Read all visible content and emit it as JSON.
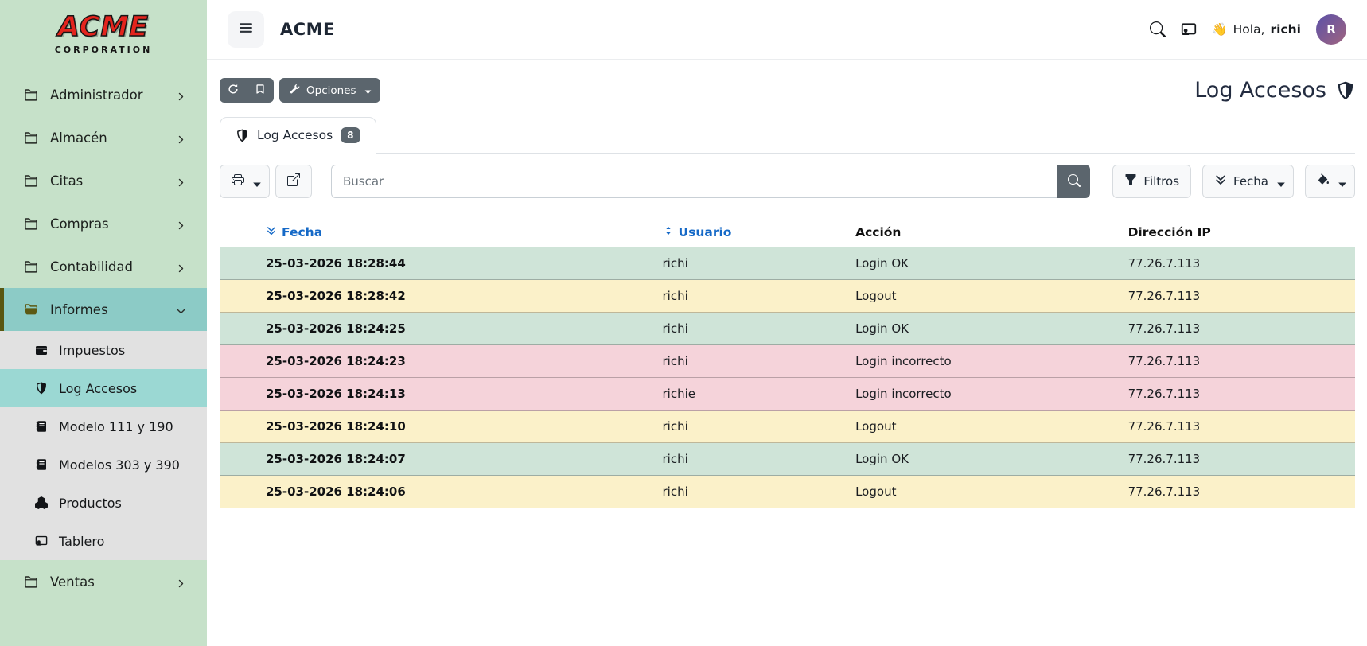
{
  "colors": {
    "sidebar_green": "#c6e1c9",
    "active_teal": "#8ccbc6",
    "submenu_active": "#9bd8d3",
    "accent_dark": "#5b656d",
    "link_blue": "#1569c7",
    "logo_red": "#e3241d",
    "row_ok": "#cfe4d8",
    "row_logout": "#fbf1c9",
    "row_bad": "#f5d3da"
  },
  "branding": {
    "logo_line1": "ACME",
    "logo_line2": "CORPORATION"
  },
  "topbar": {
    "title": "ACME",
    "wave_emoji": "👋",
    "greeting_prefix": "Hola,",
    "username": "richi",
    "avatar_initial": "R"
  },
  "sidebar": {
    "items": [
      {
        "label": "Administrador",
        "icon": "folder",
        "expandable": true
      },
      {
        "label": "Almacén",
        "icon": "folder",
        "expandable": true
      },
      {
        "label": "Citas",
        "icon": "folder",
        "expandable": true
      },
      {
        "label": "Compras",
        "icon": "folder",
        "expandable": true
      },
      {
        "label": "Contabilidad",
        "icon": "folder",
        "expandable": true
      },
      {
        "label": "Informes",
        "icon": "folder-open",
        "expandable": true,
        "expanded": true,
        "active": true,
        "children": [
          {
            "label": "Impuestos",
            "icon": "wallet"
          },
          {
            "label": "Log Accesos",
            "icon": "shield",
            "active": true
          },
          {
            "label": "Modelo 111 y 190",
            "icon": "journal"
          },
          {
            "label": "Modelos 303 y 390",
            "icon": "journal"
          },
          {
            "label": "Productos",
            "icon": "boxes"
          },
          {
            "label": "Tablero",
            "icon": "person-screen"
          }
        ]
      },
      {
        "label": "Ventas",
        "icon": "folder",
        "expandable": true
      }
    ]
  },
  "actions": {
    "options_label": "Opciones"
  },
  "page": {
    "title": "Log Accesos"
  },
  "tab": {
    "label": "Log Accesos",
    "badge": "8"
  },
  "toolbar": {
    "search_placeholder": "Buscar",
    "filtros_label": "Filtros",
    "fecha_label": "Fecha"
  },
  "table": {
    "columns": [
      {
        "label": "Fecha",
        "sortable": true,
        "sorted": "desc"
      },
      {
        "label": "Usuario",
        "sortable": true
      },
      {
        "label": "Acción"
      },
      {
        "label": "Dirección IP"
      }
    ],
    "rows": [
      {
        "fecha": "25-03-2026 18:28:44",
        "usuario": "richi",
        "accion": "Login OK",
        "ip": "77.26.7.113",
        "status": "ok"
      },
      {
        "fecha": "25-03-2026 18:28:42",
        "usuario": "richi",
        "accion": "Logout",
        "ip": "77.26.7.113",
        "status": "logout"
      },
      {
        "fecha": "25-03-2026 18:24:25",
        "usuario": "richi",
        "accion": "Login OK",
        "ip": "77.26.7.113",
        "status": "ok"
      },
      {
        "fecha": "25-03-2026 18:24:23",
        "usuario": "richi",
        "accion": "Login incorrecto",
        "ip": "77.26.7.113",
        "status": "bad"
      },
      {
        "fecha": "25-03-2026 18:24:13",
        "usuario": "richie",
        "accion": "Login incorrecto",
        "ip": "77.26.7.113",
        "status": "bad"
      },
      {
        "fecha": "25-03-2026 18:24:10",
        "usuario": "richi",
        "accion": "Logout",
        "ip": "77.26.7.113",
        "status": "logout"
      },
      {
        "fecha": "25-03-2026 18:24:07",
        "usuario": "richi",
        "accion": "Login OK",
        "ip": "77.26.7.113",
        "status": "ok"
      },
      {
        "fecha": "25-03-2026 18:24:06",
        "usuario": "richi",
        "accion": "Logout",
        "ip": "77.26.7.113",
        "status": "logout"
      }
    ]
  }
}
